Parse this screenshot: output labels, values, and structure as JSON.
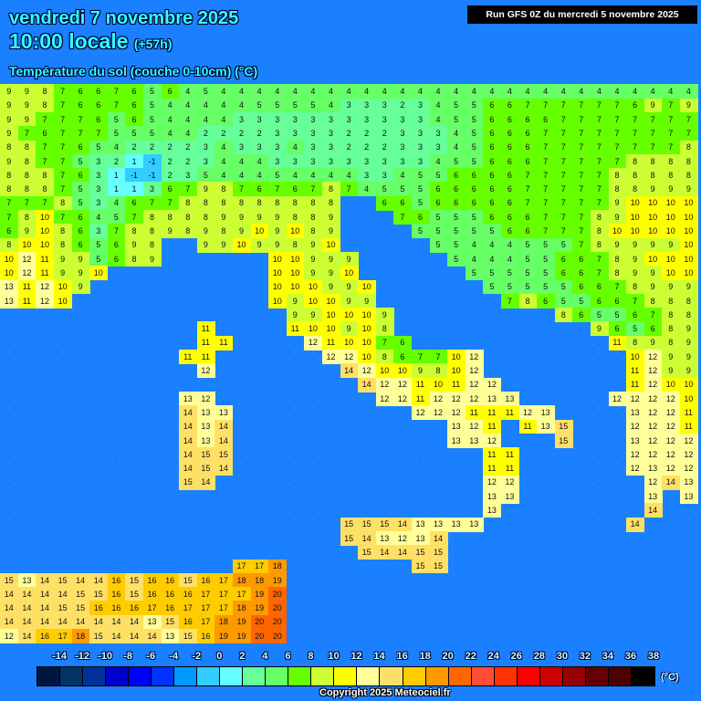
{
  "header": {
    "date": "vendredi 7 novembre 2025",
    "time": "10:00 locale",
    "lead": "(+57h)",
    "parameter": "Température du sol (couche 0-10cm) (°C)",
    "run": "Run GFS 0Z du mercredi 5 novembre 2025"
  },
  "colors": {
    "sea": "#1a80ff",
    "title": "#33ffff"
  },
  "legend": {
    "unit": "(°C)",
    "labels": [
      "-14",
      "-12",
      "-10",
      "-8",
      "-6",
      "-4",
      "-2",
      "0",
      "2",
      "4",
      "6",
      "8",
      "10",
      "12",
      "14",
      "16",
      "18",
      "20",
      "22",
      "24",
      "26",
      "28",
      "30",
      "32",
      "34",
      "36",
      "38"
    ],
    "colors": [
      "#001640",
      "#003366",
      "#003399",
      "#0000cc",
      "#0000ff",
      "#0033ff",
      "#0099ff",
      "#33ccff",
      "#66ffff",
      "#66ff99",
      "#66ff66",
      "#66ff00",
      "#ccff33",
      "#ffff00",
      "#ffff99",
      "#ffe066",
      "#ffcc00",
      "#ff9900",
      "#ff6600",
      "#ff4d33",
      "#ff3300",
      "#ff0000",
      "#cc0000",
      "#990000",
      "#660000",
      "#4d0000",
      "#000000"
    ]
  },
  "copyright": "Copyright 2025 Meteociel.fr",
  "grid": [
    "9 9 8 7 6 6 7 6 5 6 4 5 4 4 4 4 4 4 4 4 4 4 4 4 4 4 4 4 4 4 4 4 4 4 4 4 4 4 4",
    "9 9 8 7 6 6 7 6 5 4 4 4 4 4 5 5 5 5 4 3 3 3 2 3 4 5 5 6 6 7 7 7 7 7 7 6 9 7 9",
    "9 9 7 7 7 6 5 6 5 4 4 4 4 3 3 3 3 3 3 3 3 3 3 3 4 5 5 6 6 6 6 7 7 7 7 7 7 7 7",
    "9 7 6 7 7 7 5 5 5 4 4 2 2 2 2 3 3 3 3 2 2 2 3 3 3 4 5 6 6 6 7 7 7 7 7 7 7 7 7",
    "8 8 7 7 6 5 4 2 2 2 2 3 4 3 3 3 4 3 3 2 2 2 3 3 3 4 5 6 6 6 7 7 7 7 7 7 7 7 8",
    "9 8 7 7 5 3 2 1 -1 2 2 3 4 4 4 3 3 3 3 3 3 3 3 3 4 5 5 6 6 6 7 7 7 7 7 8 8 8 8",
    "8 8 8 7 6 3 1 -1 -1 2 3 5 4 4 4 5 4 4 4 4 3 3 4 5 5 6 6 6 6 7 7 7 7 7 8 8 8 8 8",
    "8 8 8 7 5 3 1 1 3 6 7 9 8 7 6 7 6 7 8 7 4 5 5 5 6 6 6 6 6 7 7 7 7 7 8 8 9 9 9",
    "7 7 7 8 5 3 4 6 7 7 8 8 8 8 8 8 8 8 8 . . 6 6 5 6 6 6 6 6 7 7 7 7 7 9 10 10 10 10",
    "7 8 10 7 6 4 5 7 8 8 8 8 9 9 9 9 8 8 9 . . . 7 6 5 5 5 6 6 6 7 7 7 8 9 10 10 10 10",
    "6 9 10 8 6 3 7 8 8 9 8 9 8 9 10 9 10 8 9 . . . . 5 5 5 5 5 6 6 7 7 7 8 10 10 10 10 10",
    "8 10 10 8 6 5 6 9 8 . . 9 9 10 9 9 8 9 10 . . . . . 5 5 4 4 4 5 5 5 7 8 9 9 9 9 10",
    "10 12 11 9 9 5 6 8 9 . . . . . . 10 10 9 9 9 . . . . . 5 4 4 4 5 5 6 6 7 8 9 10 10 10",
    "10 12 11 9 9 10 . . . . . . . . . 10 10 9 9 10 . . . . . . 5 5 5 5 5 6 6 7 8 9 9 10 10",
    "13 11 12 10 9 . . . . . . . . . . 10 10 10 9 9 10 . . . . . . 5 5 5 5 5 6 6 7 8 9 9 9",
    "13 11 12 10 . . . . . . . . . . . 10 9 10 10 9 9 . . . . . . . 7 8 6 5 5 6 6 7 8 8 8",
    ". . . . . . . . . . . . . . . . 9 9 10 10 10 9 . . . . . . . . . 8 6 5 5 6 7 8 8",
    ". . . . . . . . . . . 11 . . . . 11 10 10 9 10 8 . . . . . . . . . . . 9 6 5 6 8 9",
    ". . . . . . . . . . . 11 11 . . . . 12 11 10 10 7 6 . . . . . . . . . . . 11 8 9 8 9",
    ". . . . . . . . . . 11 11 . . . . . . 12 12 10 8 6 7 7 10 12 . . . . . . . . 10 12 9 9",
    ". . . . . . . . . . . 12 . . . . . . . 14 12 10 10 9 8 10 12 . . . . . . . . 11 12 9 9",
    ". . . . . . . . . . . . . . . . . . . . 14 12 12 11 10 11 12 12 . . . . . . . 11 12 10 10",
    ". . . . . . . . . . 13 12 . . . . . . . . . 12 12 11 12 12 12 13 13 . . . . . 12 12 12 12 10",
    ". . . . . . . . . . 14 13 13 . . . . . . . . . . 12 12 12 11 11 11 12 13 . . . . 13 12 12 11",
    ". . . . . . . . . . 14 13 14 . . . . . . . . . . . . 13 12 11 . 11 13 15 . . . 12 12 12 11",
    ". . . . . . . . . . 14 13 14 . . . . . . . . . . . . 13 13 12 . . . 15 . . . 13 12 12 12",
    ". . . . . . . . . . 14 15 15 . . . . . . . . . . . . . . 11 11 . . . . . . 12 12 12 12",
    ". . . . . . . . . . 14 15 14 . . . . . . . . . . . . . . 11 11 . . . . . . 12 13 12 12",
    ". . . . . . . . . . 15 14 . . . . . . . . . . . . . . . 12 12 . . . . . . . 12 14 13",
    ". . . . . . . . . . . . . . . . . . . . . . . . . . . 13 13 . . . . . . . 13 . 13",
    ". . . . . . . . . . . . . . . . . . . . . . . . . . . 13 . . . . . . . . 14 . .",
    ". . . . . . . . . . . . . . . . . . . 15 15 15 14 13 13 13 13 . . . . . . . . 14 .",
    ". . . . . . . . . . . . . . . . . . . 15 14 13 12 13 14 . . . . . . . . . . . . .",
    ". . . . . . . . . . . . . . . . . . . . 15 14 14 15 15 . . . . . . . . . . . . .",
    ". . . . . . . . . . . . . 17 17 18 . . . . . . . 15 15 . . . . . . . . . . . . .",
    "15 13 14 15 14 14 16 15 16 16 15 16 17 18 18 19",
    "14 14 14 14 15 15 16 15 16 16 16 17 17 17 19 20",
    "14 14 14 15 15 16 16 16 17 16 17 17 17 18 19 20",
    "14 14 14 14 14 14 14 14 13 15 16 17 18 19 20 20",
    "12 14 16 17 18 15 14 14 14 13 15 16 19 19 20 20"
  ]
}
